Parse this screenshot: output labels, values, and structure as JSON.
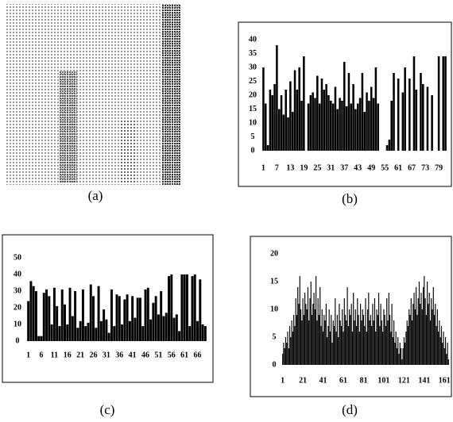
{
  "image_caption": "(a)",
  "chart_data": [
    {
      "type": "bar",
      "caption": "(b)",
      "color": "#000000",
      "x": [
        1,
        2,
        3,
        4,
        5,
        6,
        7,
        8,
        9,
        10,
        11,
        12,
        13,
        14,
        15,
        16,
        17,
        18,
        19,
        20,
        21,
        22,
        23,
        24,
        25,
        26,
        27,
        28,
        29,
        30,
        31,
        32,
        33,
        34,
        35,
        36,
        37,
        38,
        39,
        40,
        41,
        42,
        43,
        44,
        45,
        46,
        47,
        48,
        49,
        50,
        51,
        52,
        53,
        54,
        55,
        56,
        57,
        58,
        59,
        60,
        61,
        62,
        63,
        64,
        65,
        66,
        67,
        68,
        69,
        70,
        71,
        72,
        73,
        74,
        75,
        76,
        77,
        78,
        79,
        80,
        81,
        82
      ],
      "values": [
        30,
        17,
        2,
        22,
        20,
        24,
        38,
        15,
        20,
        13,
        22,
        12,
        25,
        14,
        29,
        22,
        30,
        18,
        34,
        0,
        17,
        20,
        21,
        19,
        27,
        17,
        26,
        22,
        24,
        20,
        18,
        17,
        23,
        15,
        19,
        18,
        32,
        16,
        28,
        17,
        24,
        15,
        17,
        19,
        28,
        14,
        21,
        18,
        23,
        19,
        30,
        17,
        0,
        0,
        0,
        2,
        4,
        18,
        28,
        0,
        26,
        0,
        21,
        30,
        0,
        26,
        0,
        34,
        22,
        0,
        28,
        24,
        0,
        23,
        0,
        20,
        0,
        0,
        34,
        0,
        34,
        34
      ],
      "xlim": [
        0.5,
        82.5
      ],
      "xticks": [
        1,
        7,
        13,
        19,
        25,
        31,
        37,
        43,
        49,
        55,
        61,
        67,
        73,
        79
      ],
      "ylim": [
        0,
        40
      ],
      "yticks": [
        0,
        5,
        10,
        15,
        20,
        25,
        30,
        35,
        40
      ]
    },
    {
      "type": "bar",
      "caption": "(c)",
      "color": "#000000",
      "x": [
        1,
        2,
        3,
        4,
        5,
        6,
        7,
        8,
        9,
        10,
        11,
        12,
        13,
        14,
        15,
        16,
        17,
        18,
        19,
        20,
        21,
        22,
        23,
        24,
        25,
        26,
        27,
        28,
        29,
        30,
        31,
        32,
        33,
        34,
        35,
        36,
        37,
        38,
        39,
        40,
        41,
        42,
        43,
        44,
        45,
        46,
        47,
        48,
        49,
        50,
        51,
        52,
        53,
        54,
        55,
        56,
        57,
        58,
        59,
        60,
        61,
        62,
        63,
        64,
        65,
        66,
        67,
        68,
        69
      ],
      "values": [
        24,
        36,
        33,
        30,
        3,
        3,
        29,
        31,
        27,
        10,
        32,
        21,
        9,
        31,
        22,
        10,
        32,
        15,
        30,
        8,
        12,
        31,
        9,
        11,
        34,
        27,
        8,
        33,
        12,
        19,
        13,
        5,
        31,
        9,
        28,
        27,
        10,
        25,
        28,
        12,
        27,
        14,
        26,
        26,
        9,
        31,
        32,
        13,
        23,
        27,
        16,
        30,
        15,
        17,
        39,
        40,
        14,
        16,
        6,
        40,
        40,
        40,
        9,
        39,
        40,
        12,
        37,
        10,
        9
      ],
      "xlim": [
        0.5,
        69.5
      ],
      "xticks": [
        1,
        6,
        11,
        16,
        21,
        26,
        31,
        36,
        41,
        46,
        51,
        56,
        61,
        66
      ],
      "ylim": [
        0,
        50
      ],
      "yticks": [
        0,
        10,
        20,
        30,
        40,
        50
      ]
    },
    {
      "type": "bar",
      "caption": "(d)",
      "color": "#000000",
      "x": [
        1,
        2,
        3,
        4,
        5,
        6,
        7,
        8,
        9,
        10,
        11,
        12,
        13,
        14,
        15,
        16,
        17,
        18,
        19,
        20,
        21,
        22,
        23,
        24,
        25,
        26,
        27,
        28,
        29,
        30,
        31,
        32,
        33,
        34,
        35,
        36,
        37,
        38,
        39,
        40,
        41,
        42,
        43,
        44,
        45,
        46,
        47,
        48,
        49,
        50,
        51,
        52,
        53,
        54,
        55,
        56,
        57,
        58,
        59,
        60,
        61,
        62,
        63,
        64,
        65,
        66,
        67,
        68,
        69,
        70,
        71,
        72,
        73,
        74,
        75,
        76,
        77,
        78,
        79,
        80,
        81,
        82,
        83,
        84,
        85,
        86,
        87,
        88,
        89,
        90,
        91,
        92,
        93,
        94,
        95,
        96,
        97,
        98,
        99,
        100,
        101,
        102,
        103,
        104,
        105,
        106,
        107,
        108,
        109,
        110,
        111,
        112,
        113,
        114,
        115,
        116,
        117,
        118,
        119,
        120,
        121,
        122,
        123,
        124,
        125,
        126,
        127,
        128,
        129,
        130,
        131,
        132,
        133,
        134,
        135,
        136,
        137,
        138,
        139,
        140,
        141,
        142,
        143,
        144,
        145,
        146,
        147,
        148,
        149,
        150,
        151,
        152,
        153,
        154,
        155,
        156,
        157,
        158,
        159,
        160,
        161,
        162,
        163,
        164,
        165
      ],
      "values": [
        2,
        4,
        3,
        5,
        4,
        6,
        3,
        7,
        5,
        8,
        6,
        9,
        7,
        12,
        9,
        14,
        11,
        16,
        10,
        8,
        12,
        9,
        13,
        11,
        10,
        14,
        8,
        12,
        15,
        9,
        11,
        13,
        10,
        16,
        8,
        12,
        9,
        14,
        7,
        10,
        6,
        9,
        8,
        11,
        5,
        7,
        10,
        6,
        9,
        4,
        8,
        7,
        12,
        6,
        9,
        5,
        11,
        8,
        7,
        10,
        6,
        12,
        9,
        8,
        14,
        7,
        10,
        9,
        11,
        6,
        13,
        8,
        10,
        7,
        12,
        9,
        6,
        11,
        8,
        10,
        9,
        7,
        12,
        6,
        10,
        13,
        8,
        9,
        7,
        11,
        8,
        12,
        6,
        10,
        9,
        13,
        7,
        11,
        8,
        6,
        10,
        9,
        7,
        12,
        8,
        13,
        9,
        6,
        11,
        5,
        8,
        4,
        6,
        3,
        5,
        2,
        4,
        3,
        1,
        3,
        5,
        4,
        6,
        8,
        7,
        10,
        9,
        12,
        8,
        11,
        13,
        10,
        14,
        9,
        12,
        15,
        11,
        13,
        10,
        14,
        16,
        12,
        9,
        15,
        11,
        13,
        8,
        12,
        10,
        14,
        9,
        11,
        7,
        10,
        6,
        8,
        5,
        7,
        4,
        6,
        3,
        5,
        2,
        4,
        1
      ],
      "xlim": [
        0.5,
        165.5
      ],
      "xticks": [
        1,
        21,
        41,
        61,
        81,
        101,
        121,
        141,
        161
      ],
      "ylim": [
        0,
        20
      ],
      "yticks": [
        0,
        5,
        10,
        15,
        20
      ]
    }
  ]
}
